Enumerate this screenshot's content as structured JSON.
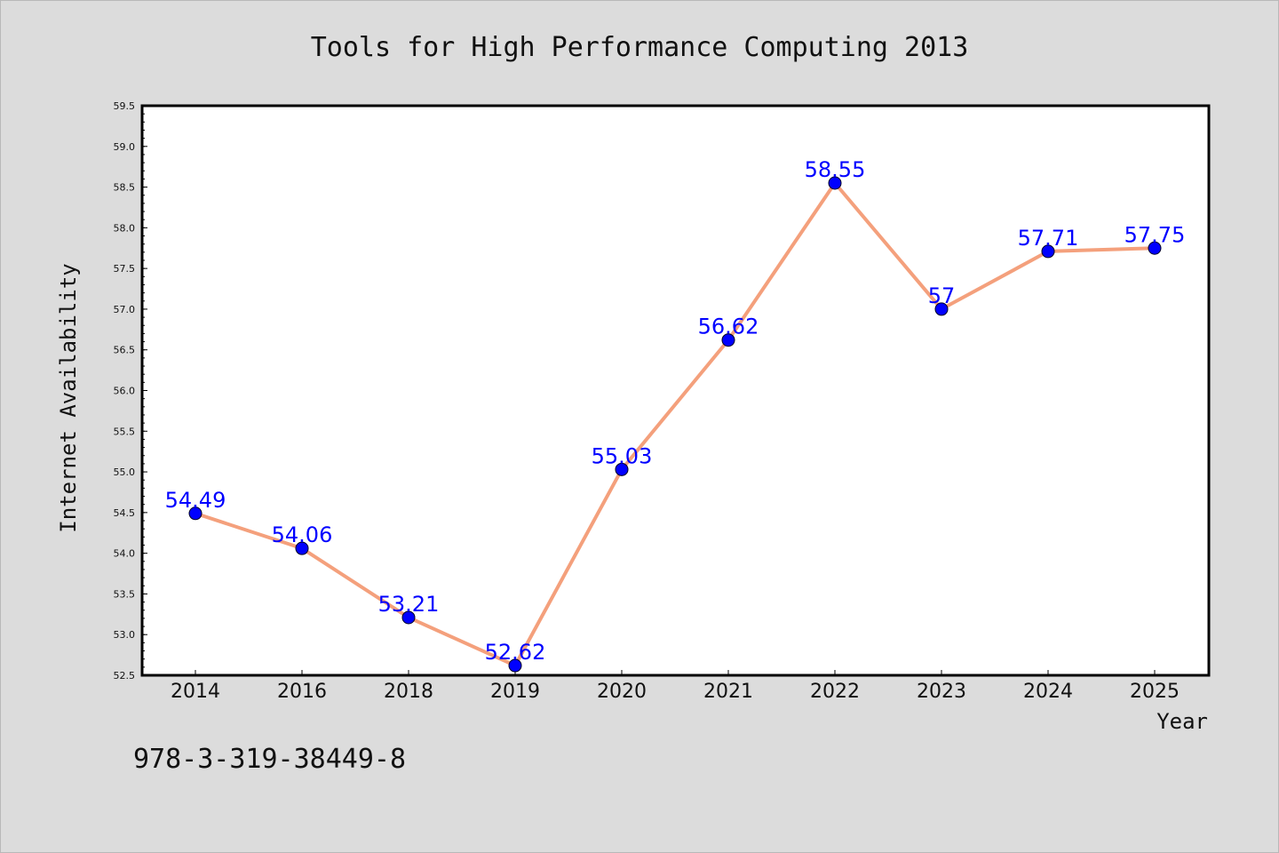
{
  "chart_data": {
    "type": "line",
    "title": "Tools for High Performance Computing 2013",
    "xlabel": "Year",
    "ylabel": "Internet Availability",
    "categories": [
      "2014",
      "2016",
      "2018",
      "2019",
      "2020",
      "2021",
      "2022",
      "2023",
      "2024",
      "2025"
    ],
    "values": [
      54.49,
      54.06,
      53.21,
      52.62,
      55.03,
      56.62,
      58.55,
      57,
      57.71,
      57.75
    ],
    "data_labels": [
      "54.49",
      "54.06",
      "53.21",
      "52.62",
      "55.03",
      "56.62",
      "58.55",
      "57",
      "57.71",
      "57.75"
    ],
    "ylim": [
      52.5,
      59.5
    ],
    "yticks": [
      "52.5",
      "53.0",
      "53.5",
      "54.0",
      "54.5",
      "55.0",
      "55.5",
      "56.0",
      "56.5",
      "57.0",
      "57.5",
      "58.0",
      "58.5",
      "59.0",
      "59.5"
    ],
    "grid": false,
    "colors": {
      "line": "#f4a07c",
      "marker": "#0000ff",
      "label": "#0000ff",
      "plot_bg": "#ffffff",
      "page_bg": "#dcdcdc"
    }
  },
  "footer_text": "978-3-319-38449-8"
}
